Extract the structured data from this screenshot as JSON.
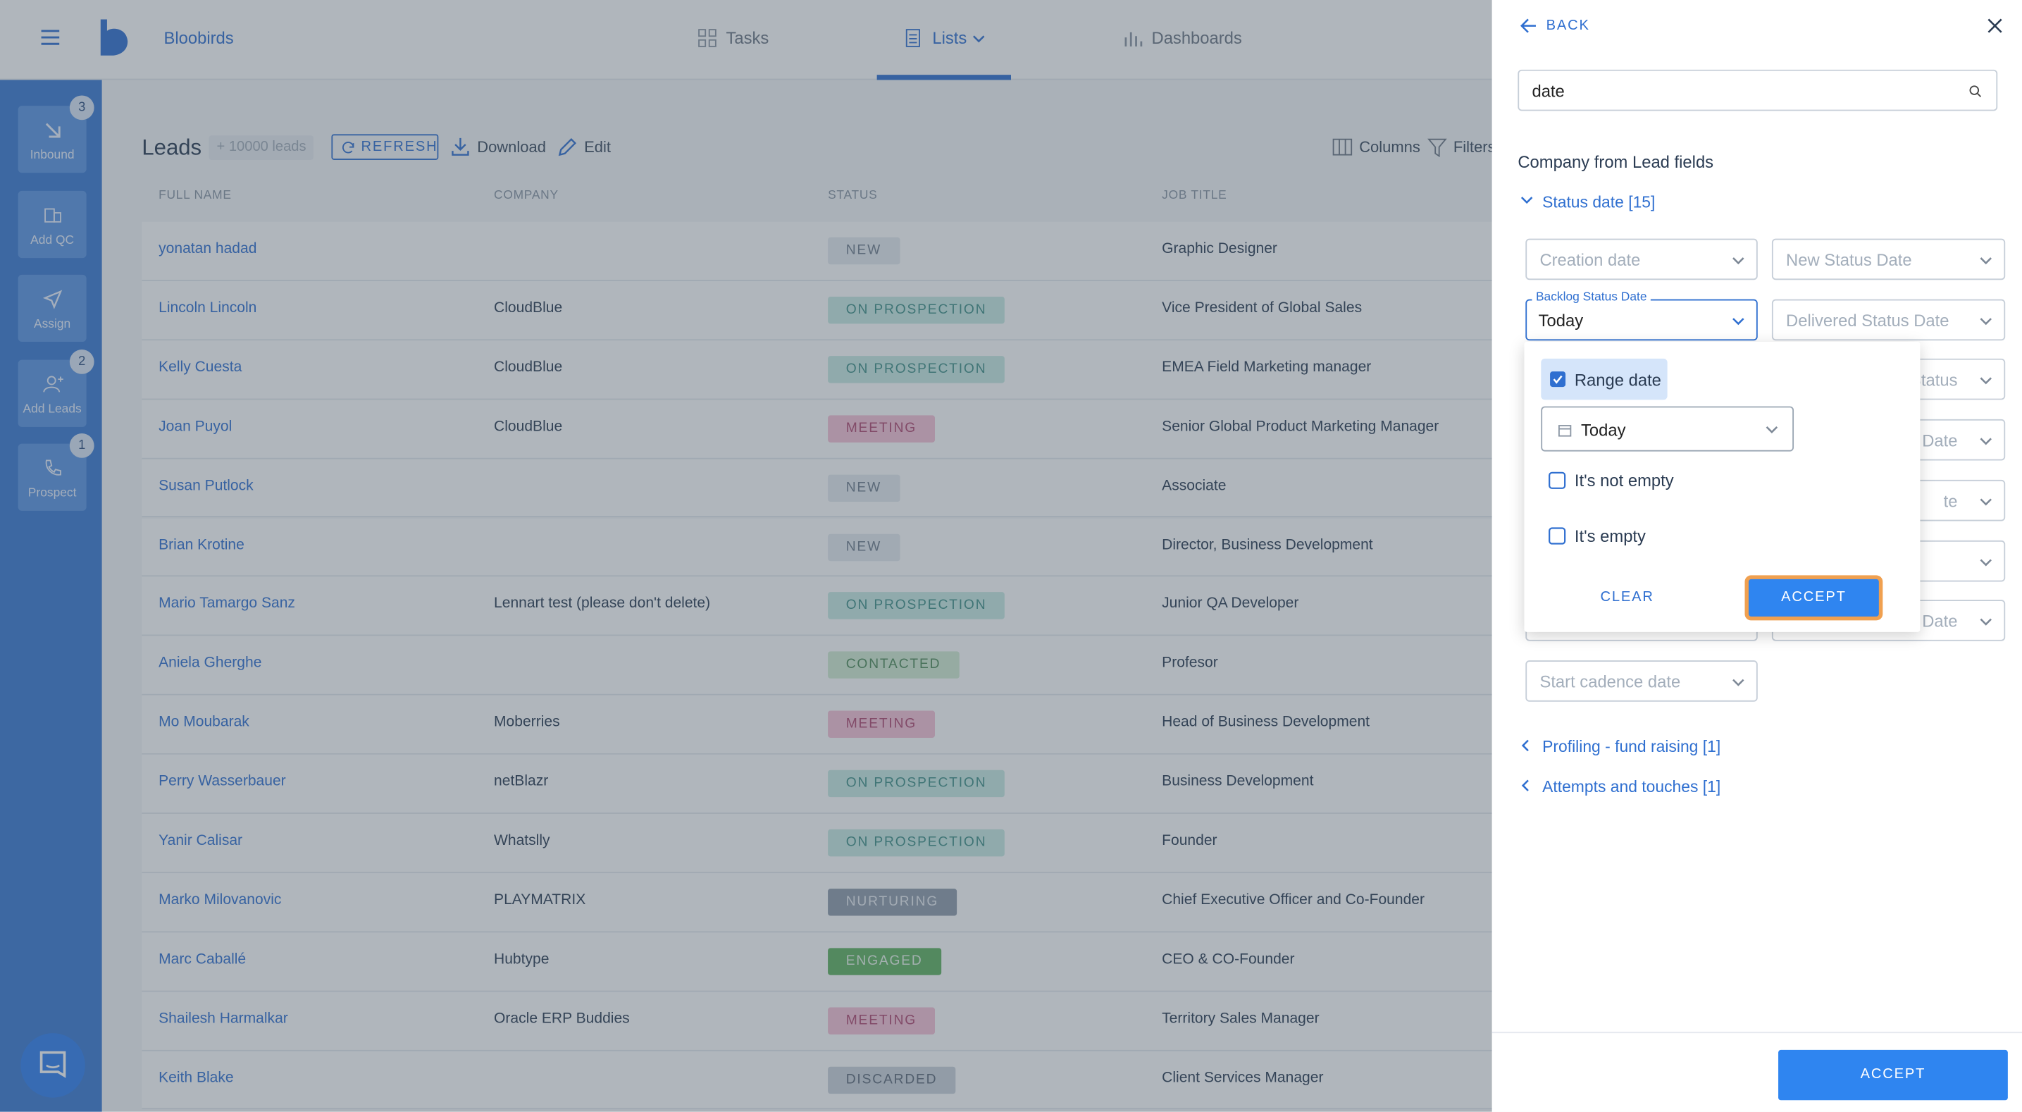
{
  "header": {
    "app_name": "Bloobirds",
    "nav": [
      "Tasks",
      "Lists",
      "Dashboards"
    ]
  },
  "sidebar": [
    {
      "label": "Inbound",
      "badge": 3
    },
    {
      "label": "Add QC"
    },
    {
      "label": "Assign"
    },
    {
      "label": "Add Leads",
      "badge": 2
    },
    {
      "label": "Prospect",
      "badge": 1
    }
  ],
  "toolbar": {
    "title": "Leads",
    "count": "+ 10000 leads",
    "refresh": "REFRESH",
    "download": "Download",
    "edit": "Edit",
    "columns": "Columns",
    "filters": "Filters"
  },
  "table": {
    "columns": [
      "FULL NAME",
      "COMPANY",
      "STATUS",
      "JOB TITLE"
    ],
    "rows": [
      [
        "yonatan hadad",
        null,
        "NEW",
        "Graphic Designer"
      ],
      [
        "Lincoln Lincoln",
        "CloudBlue",
        "ON PROSPECTION",
        "Vice President of Global Sales"
      ],
      [
        "Kelly Cuesta",
        "CloudBlue",
        "ON PROSPECTION",
        "EMEA Field Marketing manager"
      ],
      [
        "Joan Puyol",
        "CloudBlue",
        "MEETING",
        "Senior Global Product Marketing Manager"
      ],
      [
        "Susan Putlock",
        null,
        "NEW",
        "Associate"
      ],
      [
        "Brian Krotine",
        null,
        "NEW",
        "Director, Business Development"
      ],
      [
        "Mario Tamargo Sanz",
        "Lennart test (please don't delete)",
        "ON PROSPECTION",
        "Junior QA Developer"
      ],
      [
        "Aniela Gherghe",
        null,
        "CONTACTED",
        "Profesor"
      ],
      [
        "Mo Moubarak",
        "Moberries",
        "MEETING",
        "Head of Business Development"
      ],
      [
        "Perry Wasserbauer",
        "netBlazr",
        "ON PROSPECTION",
        "Business Development"
      ],
      [
        "Yanir Calisar",
        "Whatslly",
        "ON PROSPECTION",
        "Founder"
      ],
      [
        "Marko Milovanovic",
        "PLAYMATRIX",
        "NURTURING",
        "Chief Executive Officer and Co-Founder"
      ],
      [
        "Marc Caballé",
        "Hubtype",
        "ENGAGED",
        "CEO & CO-Founder"
      ],
      [
        "Shailesh Harmalkar",
        "Oracle ERP Buddies",
        "MEETING",
        "Territory Sales Manager"
      ],
      [
        "Keith Blake",
        null,
        "DISCARDED",
        "Client Services Manager"
      ]
    ],
    "status_styles": [
      {
        "status": "NEW",
        "bg": "#e6eaef",
        "fg": "#6f7d8c"
      },
      {
        "status": "ON PROSPECTION",
        "bg": "#c9ebe4",
        "fg": "#3f8f87"
      },
      {
        "status": "MEETING",
        "bg": "#f6c2d6",
        "fg": "#b0466f"
      },
      {
        "status": "CONTACTED",
        "bg": "#d2ecd3",
        "fg": "#4e8b58"
      },
      {
        "status": "NURTURING",
        "bg": "#8f9cab",
        "fg": "#e9edf2"
      },
      {
        "status": "ENGAGED",
        "bg": "#5fb25f",
        "fg": "#e8f5e8"
      },
      {
        "status": "DISCARDED",
        "bg": "#cbd3db",
        "fg": "#5c6878"
      }
    ]
  },
  "panel": {
    "back": "BACK",
    "search": "date",
    "section": "Company from Lead fields",
    "open_group": "Status date [15]",
    "fields": [
      "Creation date",
      "New Status Date",
      {
        "label": "Backlog Status Date",
        "value": "Today"
      },
      "Delivered Status Date",
      null,
      "Status",
      null,
      "Date",
      null,
      "te",
      null,
      null,
      null,
      "Date",
      "Start cadence date"
    ],
    "dropdown": {
      "range": "Range date",
      "period": "Today",
      "not_empty": "It's not empty",
      "empty": "It's empty",
      "clear": "CLEAR",
      "accept": "ACCEPT"
    },
    "closed_groups": [
      "Profiling - fund raising [1]",
      "Attempts and touches [1]"
    ],
    "accept": "ACCEPT"
  }
}
